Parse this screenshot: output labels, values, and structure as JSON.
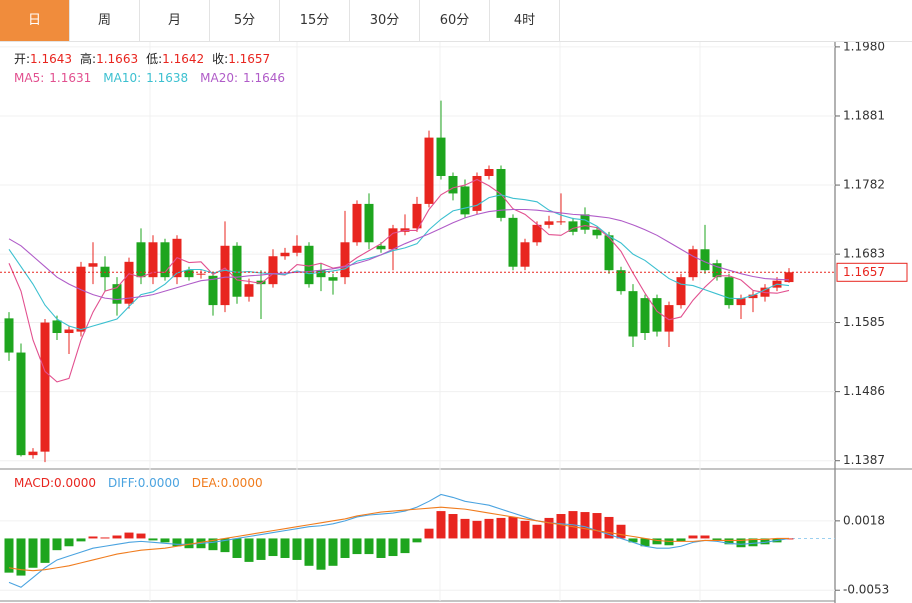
{
  "tabs": [
    "日",
    "周",
    "月",
    "5分",
    "15分",
    "30分",
    "60分",
    "4时"
  ],
  "chart_data": [
    {
      "type": "candlestick",
      "info": [
        {
          "name": "开:",
          "value": 1.1643
        },
        {
          "name": "高:",
          "value": 1.1663
        },
        {
          "name": "低:",
          "value": 1.1642
        },
        {
          "name": "收:",
          "value": 1.1657
        }
      ],
      "up_color": "#e8251f",
      "down_color": "#1ea51e",
      "open": [
        1.1591,
        1.1542,
        1.1395,
        1.14,
        1.1588,
        1.157,
        1.1572,
        1.1665,
        1.1665,
        1.164,
        1.1612,
        1.17,
        1.165,
        1.17,
        1.165,
        1.166,
        1.1655,
        1.1652,
        1.161,
        1.1695,
        1.1622,
        1.1645,
        1.164,
        1.168,
        1.1685,
        1.1695,
        1.166,
        1.165,
        1.165,
        1.17,
        1.1755,
        1.1695,
        1.169,
        1.1715,
        1.172,
        1.1755,
        1.185,
        1.1795,
        1.178,
        1.1745,
        1.1795,
        1.1805,
        1.1735,
        1.1665,
        1.17,
        1.1725,
        1.173,
        1.173,
        1.174,
        1.1718,
        1.171,
        1.166,
        1.163,
        1.162,
        1.162,
        1.1572,
        1.161,
        1.165,
        1.169,
        1.167,
        1.165,
        1.161,
        1.162,
        1.1622,
        1.1635,
        1.1643
      ],
      "high": [
        1.16,
        1.1555,
        1.1405,
        1.159,
        1.1595,
        1.158,
        1.1672,
        1.17,
        1.168,
        1.165,
        1.1678,
        1.172,
        1.171,
        1.1705,
        1.171,
        1.1665,
        1.166,
        1.1658,
        1.173,
        1.17,
        1.1648,
        1.166,
        1.169,
        1.1692,
        1.171,
        1.17,
        1.167,
        1.1655,
        1.1745,
        1.176,
        1.177,
        1.17,
        1.1725,
        1.174,
        1.1765,
        1.186,
        1.1903,
        1.18,
        1.179,
        1.18,
        1.181,
        1.181,
        1.174,
        1.1705,
        1.173,
        1.1738,
        1.177,
        1.1735,
        1.175,
        1.1722,
        1.1715,
        1.1665,
        1.164,
        1.1625,
        1.1625,
        1.1615,
        1.1655,
        1.1695,
        1.1725,
        1.1675,
        1.1655,
        1.1625,
        1.163,
        1.164,
        1.165,
        1.1663
      ],
      "low": [
        1.153,
        1.1393,
        1.139,
        1.1385,
        1.156,
        1.154,
        1.1565,
        1.164,
        1.163,
        1.1595,
        1.1605,
        1.164,
        1.164,
        1.1645,
        1.164,
        1.1645,
        1.1648,
        1.1595,
        1.16,
        1.1612,
        1.1615,
        1.159,
        1.1635,
        1.1675,
        1.168,
        1.1635,
        1.163,
        1.1625,
        1.164,
        1.1695,
        1.169,
        1.1685,
        1.166,
        1.171,
        1.1715,
        1.175,
        1.179,
        1.176,
        1.1735,
        1.174,
        1.179,
        1.173,
        1.166,
        1.166,
        1.1695,
        1.172,
        1.1725,
        1.171,
        1.1712,
        1.1705,
        1.1655,
        1.1625,
        1.155,
        1.156,
        1.1565,
        1.155,
        1.1605,
        1.1645,
        1.1655,
        1.1645,
        1.1605,
        1.159,
        1.16,
        1.1615,
        1.163,
        1.1642
      ],
      "close": [
        1.1542,
        1.1395,
        1.14,
        1.1585,
        1.157,
        1.1575,
        1.1665,
        1.167,
        1.165,
        1.1612,
        1.1672,
        1.165,
        1.17,
        1.165,
        1.1705,
        1.165,
        1.1655,
        1.161,
        1.1695,
        1.1622,
        1.164,
        1.164,
        1.168,
        1.1685,
        1.1695,
        1.164,
        1.165,
        1.1645,
        1.17,
        1.1755,
        1.17,
        1.169,
        1.172,
        1.172,
        1.1755,
        1.185,
        1.1795,
        1.177,
        1.174,
        1.1795,
        1.1805,
        1.1735,
        1.1665,
        1.17,
        1.1725,
        1.173,
        1.173,
        1.1715,
        1.1718,
        1.171,
        1.166,
        1.163,
        1.1565,
        1.157,
        1.1572,
        1.161,
        1.165,
        1.169,
        1.166,
        1.165,
        1.161,
        1.162,
        1.1625,
        1.1635,
        1.1645,
        1.1657
      ],
      "series": [
        {
          "name": "MA5:",
          "color": "#e2508f",
          "last": 1.1631,
          "values": [
            1.167,
            1.163,
            1.156,
            1.1515,
            1.15,
            1.1505,
            1.156,
            1.16,
            1.163,
            1.1635,
            1.1655,
            1.165,
            1.1657,
            1.1657,
            1.1678,
            1.1671,
            1.1672,
            1.1654,
            1.1663,
            1.1646,
            1.1644,
            1.1641,
            1.1655,
            1.1653,
            1.1668,
            1.1666,
            1.167,
            1.1663,
            1.1666,
            1.1678,
            1.1688,
            1.1698,
            1.1713,
            1.1717,
            1.1717,
            1.1747,
            1.1768,
            1.1778,
            1.1782,
            1.179,
            1.1781,
            1.1769,
            1.1748,
            1.174,
            1.1726,
            1.1711,
            1.171,
            1.172,
            1.1724,
            1.1721,
            1.1707,
            1.1687,
            1.1656,
            1.1627,
            1.1601,
            1.1589,
            1.1593,
            1.1617,
            1.1636,
            1.1652,
            1.1652,
            1.1646,
            1.1631,
            1.1628,
            1.1627,
            1.1631
          ]
        },
        {
          "name": "MA10:",
          "color": "#3cc0d0",
          "last": 1.1638,
          "values": [
            1.169,
            1.1665,
            1.164,
            1.161,
            1.159,
            1.158,
            1.1575,
            1.158,
            1.1585,
            1.159,
            1.1608,
            1.1625,
            1.1629,
            1.164,
            1.1656,
            1.1661,
            1.1661,
            1.1656,
            1.166,
            1.1657,
            1.1658,
            1.1656,
            1.1655,
            1.1654,
            1.1659,
            1.1655,
            1.1657,
            1.1659,
            1.1662,
            1.1673,
            1.1677,
            1.1682,
            1.1688,
            1.1692,
            1.1698,
            1.1718,
            1.1733,
            1.1745,
            1.1749,
            1.1753,
            1.1764,
            1.1768,
            1.1763,
            1.1761,
            1.1758,
            1.1746,
            1.1739,
            1.1734,
            1.1732,
            1.1723,
            1.1709,
            1.1699,
            1.1683,
            1.1674,
            1.1661,
            1.1648,
            1.164,
            1.1638,
            1.1632,
            1.1626,
            1.162,
            1.1619,
            1.1624,
            1.1632,
            1.164,
            1.1638
          ]
        },
        {
          "name": "MA20:",
          "color": "#b05cc8",
          "last": 1.1646,
          "values": [
            1.1705,
            1.1695,
            1.168,
            1.1665,
            1.165,
            1.164,
            1.1632,
            1.1625,
            1.162,
            1.1618,
            1.162,
            1.1622,
            1.1625,
            1.163,
            1.1635,
            1.164,
            1.1645,
            1.1647,
            1.165,
            1.165,
            1.1652,
            1.1653,
            1.1655,
            1.1656,
            1.1657,
            1.1658,
            1.166,
            1.1662,
            1.1665,
            1.167,
            1.1675,
            1.1682,
            1.169,
            1.1698,
            1.1705,
            1.1712,
            1.172,
            1.1728,
            1.1735,
            1.174,
            1.1744,
            1.1746,
            1.1747,
            1.1747,
            1.1746,
            1.1744,
            1.1742,
            1.174,
            1.1739,
            1.1737,
            1.1735,
            1.1731,
            1.1725,
            1.1718,
            1.171,
            1.17,
            1.169,
            1.168,
            1.1672,
            1.1665,
            1.166,
            1.1655,
            1.1651,
            1.1648,
            1.1647,
            1.1646
          ]
        }
      ],
      "last_price": 1.1657,
      "ylim": [
        1.1378,
        1.1987
      ],
      "yticks": [
        {
          "value": 1.198,
          "label": "1.1980"
        },
        1.1881,
        1.1782,
        1.1683,
        1.1585,
        1.1486,
        1.1387
      ]
    },
    {
      "type": "macd",
      "macd_name": "MACD:",
      "macd_last": {
        "value": 0,
        "label": "0.0000"
      },
      "up_color": "#e8251f",
      "down_color": "#1ea51e",
      "values": [
        -0.0035,
        -0.0038,
        -0.003,
        -0.0025,
        -0.0012,
        -0.0008,
        -0.0003,
        0.0002,
        0.0001,
        0.0003,
        0.0006,
        0.0005,
        -0.0002,
        -0.0004,
        -0.0008,
        -0.001,
        -0.001,
        -0.0012,
        -0.0014,
        -0.002,
        -0.0024,
        -0.0022,
        -0.0018,
        -0.002,
        -0.0022,
        -0.0028,
        -0.0032,
        -0.0028,
        -0.002,
        -0.0016,
        -0.0016,
        -0.002,
        -0.0018,
        -0.0015,
        -0.0004,
        0.001,
        0.0028,
        0.0025,
        0.002,
        0.0018,
        0.002,
        0.0021,
        0.0022,
        0.0018,
        0.0014,
        0.0021,
        0.0025,
        0.0028,
        0.0027,
        0.0026,
        0.0022,
        0.0014,
        -0.0004,
        -0.0008,
        -0.0006,
        -0.0007,
        -0.0003,
        0.0003,
        0.0003,
        -0.0002,
        -0.0006,
        -0.0009,
        -0.0008,
        -0.0006,
        -0.0004,
        0.0
      ],
      "series": [
        {
          "name": "DIFF:",
          "color": "#4aa3e0",
          "last": {
            "value": 0,
            "label": "0.0000"
          },
          "values": [
            -0.0045,
            -0.005,
            -0.004,
            -0.003,
            -0.0022,
            -0.0018,
            -0.0014,
            -0.001,
            -0.0008,
            -0.0006,
            -0.0004,
            -0.0003,
            -0.0004,
            -0.0005,
            -0.0006,
            -0.0006,
            -0.0005,
            -0.0004,
            -0.0002,
            0.0,
            0.0002,
            0.0004,
            0.0006,
            0.0008,
            0.001,
            0.0012,
            0.0013,
            0.0015,
            0.0018,
            0.0022,
            0.0024,
            0.0025,
            0.0026,
            0.0028,
            0.0032,
            0.0038,
            0.0045,
            0.0042,
            0.0038,
            0.0036,
            0.0034,
            0.003,
            0.0026,
            0.0022,
            0.0018,
            0.0016,
            0.0015,
            0.0014,
            0.0012,
            0.0008,
            0.0004,
            0.0,
            -0.0004,
            -0.0008,
            -0.001,
            -0.001,
            -0.0008,
            -0.0004,
            -0.0002,
            -0.0003,
            -0.0005,
            -0.0006,
            -0.0005,
            -0.0004,
            -0.0002,
            0.0
          ]
        },
        {
          "name": "DEA:",
          "color": "#f07c1e",
          "last": {
            "value": 0,
            "label": "0.0000"
          },
          "values": [
            -0.003,
            -0.0032,
            -0.0033,
            -0.0032,
            -0.003,
            -0.0028,
            -0.0025,
            -0.0022,
            -0.0019,
            -0.0016,
            -0.0014,
            -0.0012,
            -0.0011,
            -0.001,
            -0.0008,
            -0.0006,
            -0.0004,
            -0.0002,
            0.0,
            0.0002,
            0.0004,
            0.0006,
            0.0008,
            0.001,
            0.0012,
            0.0014,
            0.0016,
            0.0018,
            0.002,
            0.0023,
            0.0025,
            0.0027,
            0.0028,
            0.0029,
            0.003,
            0.0031,
            0.0032,
            0.0031,
            0.003,
            0.0028,
            0.0026,
            0.0024,
            0.0022,
            0.002,
            0.0018,
            0.0016,
            0.0014,
            0.0012,
            0.001,
            0.0008,
            0.0006,
            0.0004,
            0.0002,
            0.0,
            -0.0002,
            -0.0003,
            -0.0003,
            -0.0003,
            -0.0002,
            -0.0002,
            -0.0002,
            -0.0002,
            -0.0001,
            -0.0001,
            0.0,
            0.0
          ]
        }
      ],
      "ylim": [
        -0.0063,
        0.0068
      ],
      "yticks": [
        0.0018,
        -0.0053
      ]
    }
  ]
}
